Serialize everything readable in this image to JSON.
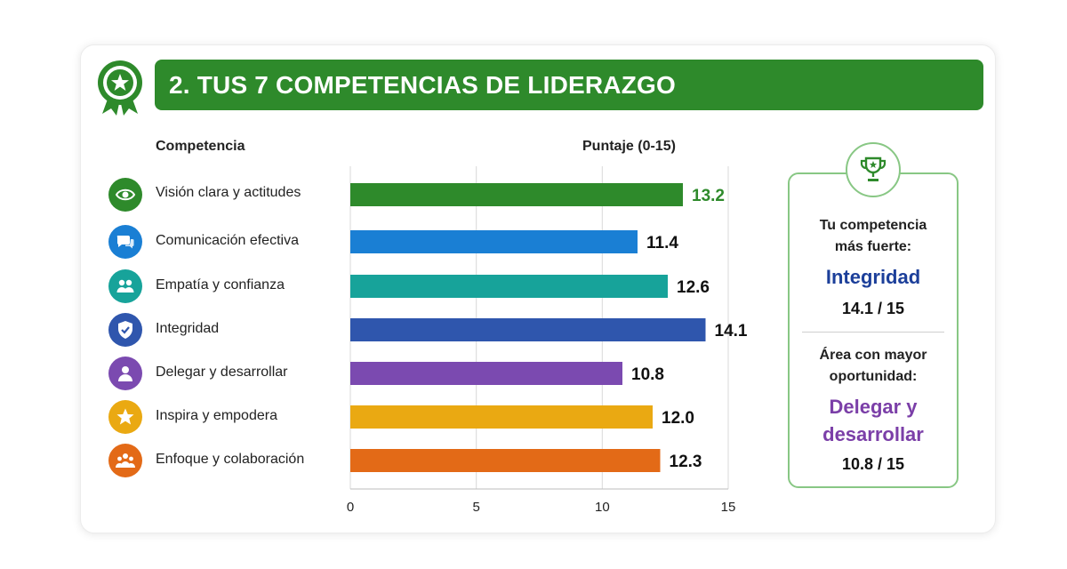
{
  "header": {
    "title": "2. TUS 7 COMPETENCIAS DE LIDERAZGO",
    "badge_icon": "award-ribbon-icon"
  },
  "table_headers": {
    "competence": "Competencia",
    "score": "Puntaje (0-15)"
  },
  "chart_data": {
    "type": "bar",
    "orientation": "horizontal",
    "title": "2. TUS 7 COMPETENCIAS DE LIDERAZGO",
    "xlabel": "Puntaje (0-15)",
    "ylabel": "Competencia",
    "xlim": [
      0,
      15
    ],
    "xticks": [
      0,
      5,
      10,
      15
    ],
    "grid": true,
    "categories": [
      "Visión clara y actitudes",
      "Comunicación efectiva",
      "Empatía y confianza",
      "Integridad",
      "Delegar y desarrollar",
      "Inspira y empodera",
      "Enfoque y colaboración"
    ],
    "values": [
      13.2,
      11.4,
      12.6,
      14.1,
      10.8,
      12.0,
      12.3
    ],
    "value_labels": [
      "13.2",
      "11.4",
      "12.6",
      "14.1",
      "10.8",
      "12.0",
      "12.3"
    ],
    "colors": [
      "#2e8a2b",
      "#1a7fd4",
      "#17a39a",
      "#2f56ad",
      "#7b4ab0",
      "#eaa912",
      "#e36a17"
    ],
    "value_label_colors": [
      "#2e8a2b",
      "#111111",
      "#111111",
      "#111111",
      "#111111",
      "#111111",
      "#111111"
    ],
    "icons": [
      "eye-icon",
      "chat-bubbles-icon",
      "people-icon",
      "shield-icon",
      "person-icon",
      "star-icon",
      "group-icon"
    ]
  },
  "summary": {
    "trophy_icon": "trophy-icon",
    "strongest_label_line1": "Tu competencia",
    "strongest_label_line2": "más fuerte:",
    "strongest_name": "Integridad",
    "strongest_score": "14.1 / 15",
    "opportunity_label_line1": "Área con mayor",
    "opportunity_label_line2": "oportunidad:",
    "opportunity_name_line1": "Delegar y",
    "opportunity_name_line2": "desarrollar",
    "opportunity_score": "10.8 / 15",
    "accent_strong": "#1c3f9a",
    "accent_weak": "#7b3fa8"
  }
}
